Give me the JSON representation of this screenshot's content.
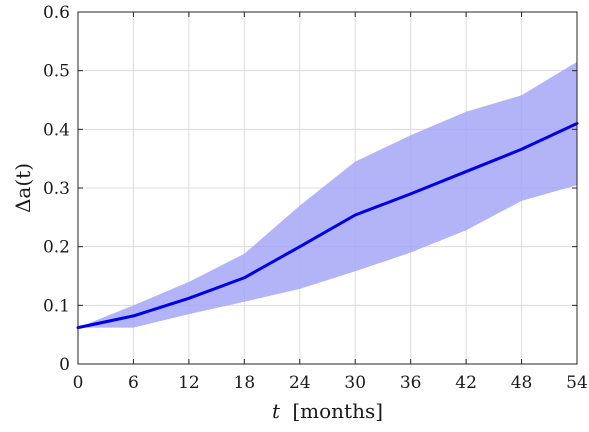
{
  "chart_data": {
    "type": "line",
    "title": "",
    "xlabel": "t [months]",
    "xlabel_var": "t",
    "xlabel_unit": "[months]",
    "ylabel": "Δa(t)",
    "xlim": [
      0,
      54
    ],
    "ylim": [
      0,
      0.6
    ],
    "xticks": [
      0,
      6,
      12,
      18,
      24,
      30,
      36,
      42,
      48,
      54
    ],
    "yticks": [
      0,
      0.1,
      0.2,
      0.3,
      0.4,
      0.5,
      0.6
    ],
    "grid": true,
    "x": [
      0,
      6,
      12,
      18,
      24,
      30,
      36,
      42,
      48,
      54
    ],
    "series": [
      {
        "values": [
          0.062,
          0.082,
          0.112,
          0.147,
          0.2,
          0.254,
          0.29,
          0.328,
          0.366,
          0.41
        ],
        "color": "#0000e6"
      }
    ],
    "band": {
      "lower": [
        0.062,
        0.062,
        0.085,
        0.106,
        0.128,
        0.158,
        0.19,
        0.228,
        0.278,
        0.305
      ],
      "upper": [
        0.062,
        0.1,
        0.14,
        0.188,
        0.27,
        0.345,
        0.39,
        0.43,
        0.458,
        0.515
      ],
      "color": "#a6a6f7"
    }
  }
}
